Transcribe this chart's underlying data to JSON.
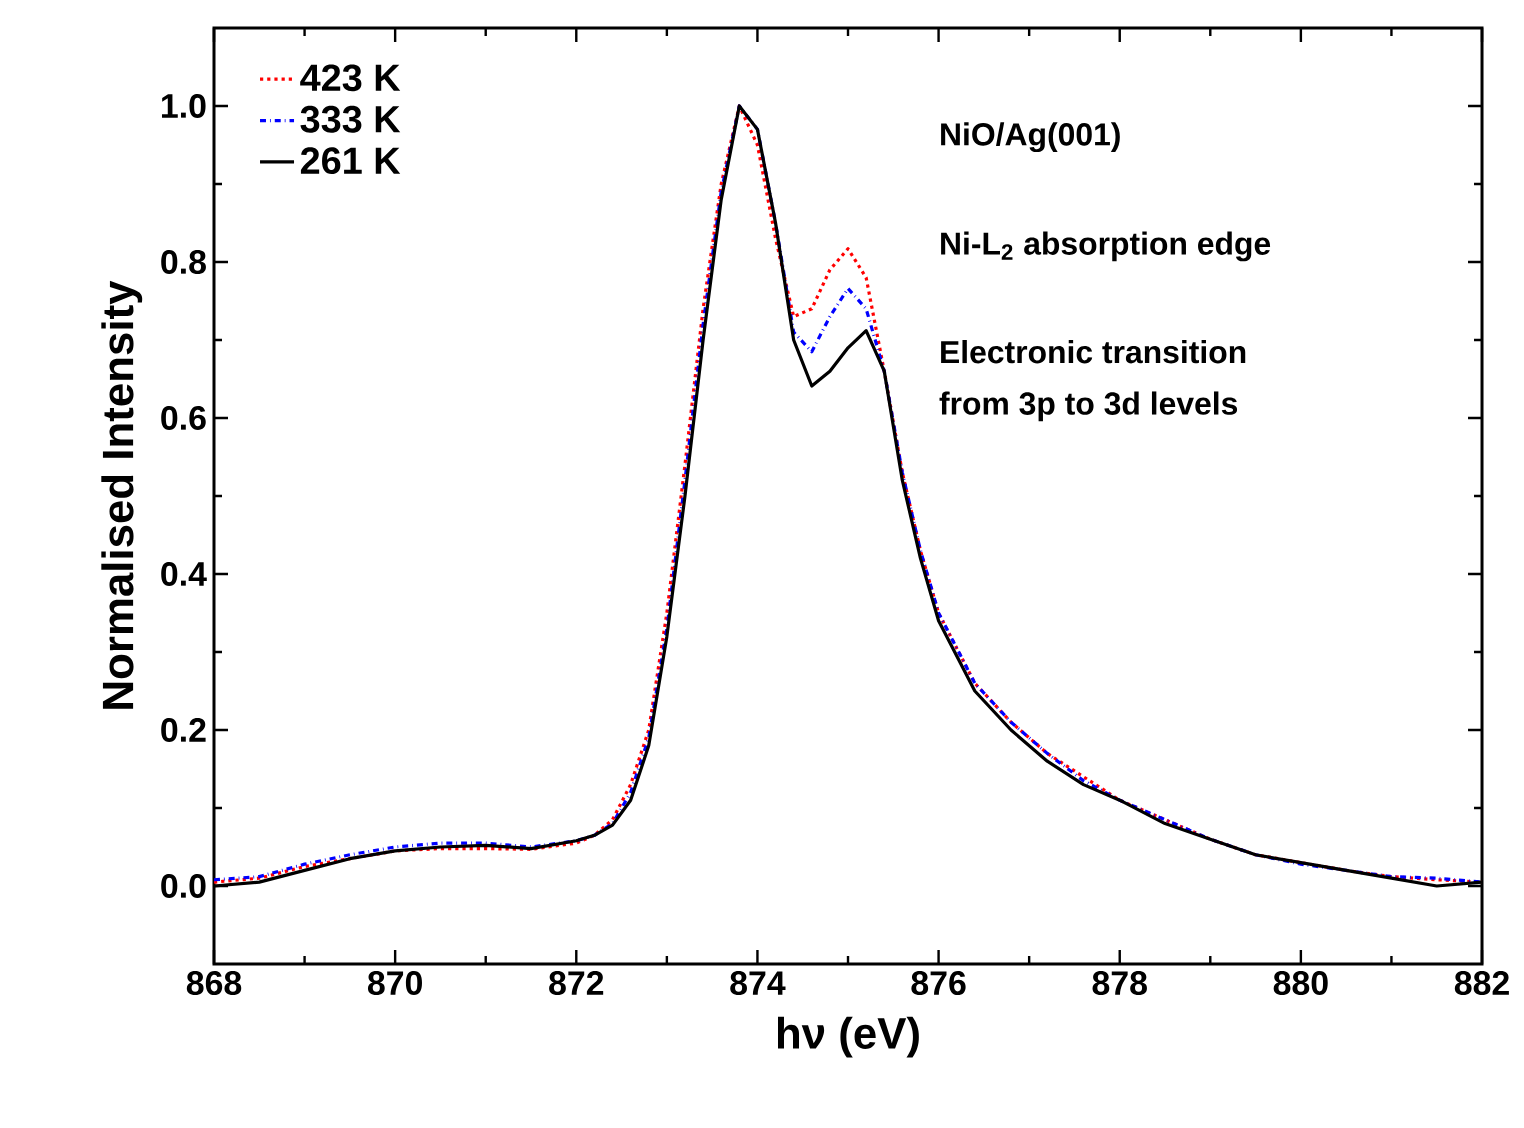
{
  "chart_data": {
    "type": "line",
    "xlabel": "hν (eV)",
    "ylabel": "Normalised Intensity",
    "annotations": [
      "NiO/Ag(001)",
      "Ni-L$_{2}$ absorption edge",
      "Electronic transition",
      "from 3p to 3d levels"
    ],
    "x": [
      868,
      868.5,
      869,
      869.5,
      870,
      870.5,
      871,
      871.5,
      872,
      872.2,
      872.4,
      872.6,
      872.8,
      873.0,
      873.2,
      873.4,
      873.6,
      873.8,
      874.0,
      874.2,
      874.4,
      874.6,
      874.8,
      875.0,
      875.2,
      875.4,
      875.6,
      875.8,
      876.0,
      876.4,
      876.8,
      877.2,
      877.6,
      878,
      878.5,
      879,
      879.5,
      880,
      880.5,
      881,
      881.5,
      882
    ],
    "series": [
      {
        "name": "423 K",
        "color": "#ff0000",
        "line_style": "dotted",
        "values": [
          0.005,
          0.01,
          0.025,
          0.035,
          0.045,
          0.048,
          0.048,
          0.047,
          0.055,
          0.065,
          0.085,
          0.13,
          0.2,
          0.35,
          0.54,
          0.74,
          0.9,
          1.0,
          0.95,
          0.83,
          0.73,
          0.74,
          0.79,
          0.817,
          0.78,
          0.66,
          0.53,
          0.43,
          0.35,
          0.26,
          0.21,
          0.17,
          0.14,
          0.11,
          0.085,
          0.06,
          0.04,
          0.03,
          0.02,
          0.012,
          0.008,
          0.005
        ]
      },
      {
        "name": "333 K",
        "color": "#0000ff",
        "line_style": "dashdot",
        "values": [
          0.008,
          0.012,
          0.028,
          0.04,
          0.05,
          0.055,
          0.055,
          0.05,
          0.058,
          0.065,
          0.08,
          0.12,
          0.19,
          0.33,
          0.52,
          0.72,
          0.89,
          1.0,
          0.97,
          0.85,
          0.71,
          0.685,
          0.73,
          0.766,
          0.74,
          0.66,
          0.53,
          0.43,
          0.35,
          0.26,
          0.21,
          0.17,
          0.135,
          0.11,
          0.085,
          0.06,
          0.04,
          0.028,
          0.02,
          0.012,
          0.01,
          0.005
        ]
      },
      {
        "name": "261 K",
        "color": "#000000",
        "line_style": "solid",
        "values": [
          0.0,
          0.005,
          0.02,
          0.035,
          0.045,
          0.05,
          0.052,
          0.048,
          0.058,
          0.065,
          0.078,
          0.11,
          0.18,
          0.32,
          0.5,
          0.7,
          0.88,
          1.0,
          0.97,
          0.85,
          0.7,
          0.641,
          0.66,
          0.69,
          0.712,
          0.66,
          0.52,
          0.42,
          0.34,
          0.25,
          0.2,
          0.16,
          0.13,
          0.11,
          0.08,
          0.06,
          0.04,
          0.03,
          0.02,
          0.01,
          0.0,
          0.005
        ]
      }
    ],
    "xlim": [
      868,
      882
    ],
    "xticks": [
      868,
      870,
      872,
      874,
      876,
      878,
      880,
      882
    ],
    "ylim": [
      -0.1,
      1.1
    ],
    "yticks": [
      {
        "value": 0,
        "label": "0.0"
      },
      {
        "value": 0.2,
        "label": "0.2"
      },
      {
        "value": 0.4,
        "label": "0.4"
      },
      {
        "value": 0.6,
        "label": "0.6"
      },
      {
        "value": 0.8,
        "label": "0.8"
      },
      {
        "value": 1.0,
        "label": "1.0"
      }
    ],
    "grid": false,
    "legend": "top left",
    "marker": "none"
  }
}
